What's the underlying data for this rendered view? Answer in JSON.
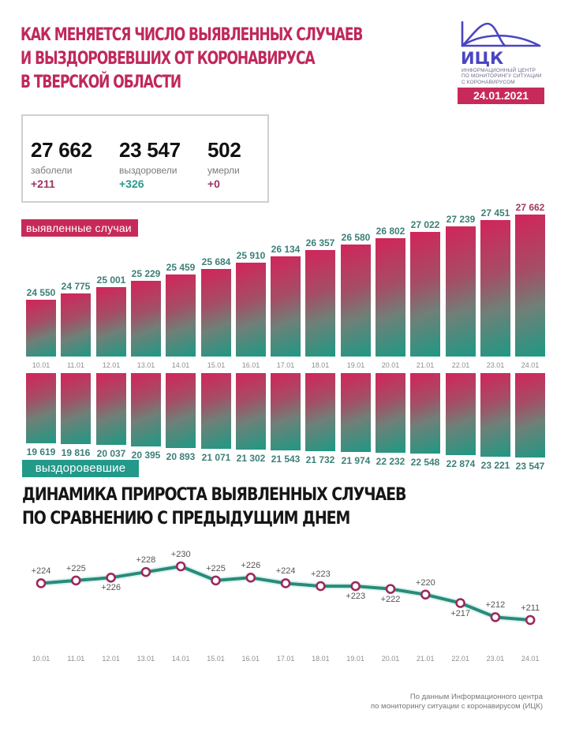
{
  "header": {
    "title_lines": [
      "КАК МЕНЯЕТСЯ ЧИСЛО ВЫЯВЛЕННЫХ СЛУЧАЕВ",
      "И ВЫЗДОРОВЕВШИХ ОТ КОРОНАВИРУСА",
      "В ТВЕРСКОЙ ОБЛАСТИ"
    ],
    "logo": {
      "abbr": "ИЦК",
      "subtitle_lines": [
        "ИНФОРМАЦИОННЫЙ ЦЕНТР",
        "ПО МОНИТОРИНГУ СИТУАЦИИ",
        "С КОРОНАВИРУСОМ"
      ],
      "icon": "wave-curve-logo-icon",
      "color": "#4a45c2"
    },
    "date": "24.01.2021"
  },
  "stats": [
    {
      "value": "27 662",
      "label": "заболели",
      "delta": "+211",
      "delta_color": "#9d3563"
    },
    {
      "value": "23 547",
      "label": "выздоровели",
      "delta": "+326",
      "delta_color": "#2a9a88"
    },
    {
      "value": "502",
      "label": "умерли",
      "delta": "+0",
      "delta_color": "#9d3563"
    }
  ],
  "colors": {
    "accent_crimson": "#c72a5a",
    "accent_teal": "#23998a",
    "line": "#2a8a7a",
    "marker_border": "#9b2a5e"
  },
  "sections": {
    "cases_label": "выявленные случаи",
    "recovered_label": "выздоровевшие",
    "growth_title_lines": [
      "ДИНАМИКА ПРИРОСТА ВЫЯВЛЕННЫХ СЛУЧАЕВ",
      "ПО СРАВНЕНИЮ С ПРЕДЫДУЩИМ ДНЕМ"
    ]
  },
  "source_lines": [
    "По данным Информационного центра",
    "по мониторингу ситуации с коронавирусом (ИЦК)"
  ],
  "chart_data": [
    {
      "type": "bar",
      "title": "выявленные случаи",
      "categories": [
        "10.01",
        "11.01",
        "12.01",
        "13.01",
        "14.01",
        "15.01",
        "16.01",
        "17.01",
        "18.01",
        "19.01",
        "20.01",
        "21.01",
        "22.01",
        "23.01",
        "24.01"
      ],
      "values": [
        24550,
        24775,
        25001,
        25229,
        25459,
        25684,
        25910,
        26134,
        26357,
        26580,
        26802,
        27022,
        27239,
        27451,
        27662
      ],
      "labels": [
        "24 550",
        "24 775",
        "25 001",
        "25 229",
        "25 459",
        "25 684",
        "25 910",
        "26 134",
        "26 357",
        "26 580",
        "26 802",
        "27 022",
        "27 239",
        "27 451",
        "27 662"
      ],
      "xlabel": "",
      "ylabel": "",
      "grid": false
    },
    {
      "type": "bar",
      "title": "выздоровевшие",
      "orientation": "downward",
      "categories": [
        "10.01",
        "11.01",
        "12.01",
        "13.01",
        "14.01",
        "15.01",
        "16.01",
        "17.01",
        "18.01",
        "19.01",
        "20.01",
        "21.01",
        "22.01",
        "23.01",
        "24.01"
      ],
      "values": [
        19619,
        19816,
        20037,
        20395,
        20893,
        21071,
        21302,
        21543,
        21732,
        21974,
        22232,
        22548,
        22874,
        23221,
        23547
      ],
      "labels": [
        "19 619",
        "19 816",
        "20 037",
        "20 395",
        "20 893",
        "21 071",
        "21 302",
        "21 543",
        "21 732",
        "21 974",
        "22 232",
        "22 548",
        "22 874",
        "23 221",
        "23 547"
      ],
      "xlabel": "",
      "ylabel": "",
      "grid": false
    },
    {
      "type": "line",
      "title": "ДИНАМИКА ПРИРОСТА ВЫЯВЛЕННЫХ СЛУЧАЕВ ПО СРАВНЕНИЮ С ПРЕДЫДУЩИМ ДНЕМ",
      "categories": [
        "10.01",
        "11.01",
        "12.01",
        "13.01",
        "14.01",
        "15.01",
        "16.01",
        "17.01",
        "18.01",
        "19.01",
        "20.01",
        "21.01",
        "22.01",
        "23.01",
        "24.01"
      ],
      "values": [
        224,
        225,
        226,
        228,
        230,
        225,
        226,
        224,
        223,
        223,
        222,
        220,
        217,
        212,
        211
      ],
      "labels": [
        "+224",
        "+225",
        "+226",
        "+228",
        "+230",
        "+225",
        "+226",
        "+224",
        "+223",
        "+223",
        "+222",
        "+220",
        "+217",
        "+212",
        "+211"
      ],
      "label_positions": [
        "above",
        "above",
        "below",
        "above",
        "above",
        "above",
        "above",
        "above",
        "above",
        "below",
        "below",
        "above",
        "below",
        "above",
        "above"
      ],
      "xlabel": "",
      "ylabel": "",
      "grid": false
    }
  ]
}
